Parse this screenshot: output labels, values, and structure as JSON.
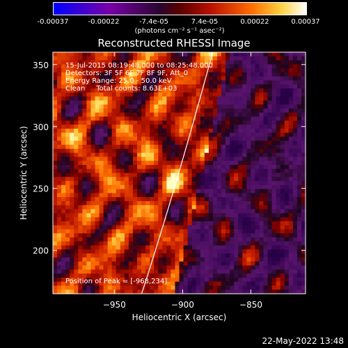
{
  "colorbar": {
    "ticks": [
      "-0.00037",
      "-0.00022",
      "-7.4e-05",
      "7.4e-05",
      "0.00022",
      "0.00037"
    ],
    "units": "(photons cm⁻² s⁻¹ asec⁻²)"
  },
  "chart_data": {
    "type": "heatmap",
    "title": "Reconstructed RHESSI Image",
    "xlabel": "Heliocentric X (arcsec)",
    "ylabel": "Heliocentric Y (arcsec)",
    "xlim": [
      -995,
      -810
    ],
    "ylim": [
      165,
      360
    ],
    "x_ticks": [
      "-950",
      "-900",
      "-850"
    ],
    "y_ticks": [
      "200",
      "250",
      "300",
      "350"
    ],
    "color_range": [
      -0.00037,
      0.00037
    ],
    "peak_position": [
      -968,
      234
    ],
    "limb_line": [
      [
        -930,
        165
      ],
      [
        -905,
        250
      ],
      [
        -878,
        360
      ]
    ]
  },
  "annotations": {
    "line1": "15-Jul-2015 08:19:48.000 to 08:25:48.000",
    "line2": "Detectors: 3F 5F 6F 7F 8F 9F, Att_0",
    "line3": "Energy Range: 25.0 - 50.0 keV",
    "line4": "Clean     Total counts: 8.63E+03",
    "peak": "Position of Peak = [-968,234]"
  },
  "timestamp": "22-May-2022 13:48"
}
